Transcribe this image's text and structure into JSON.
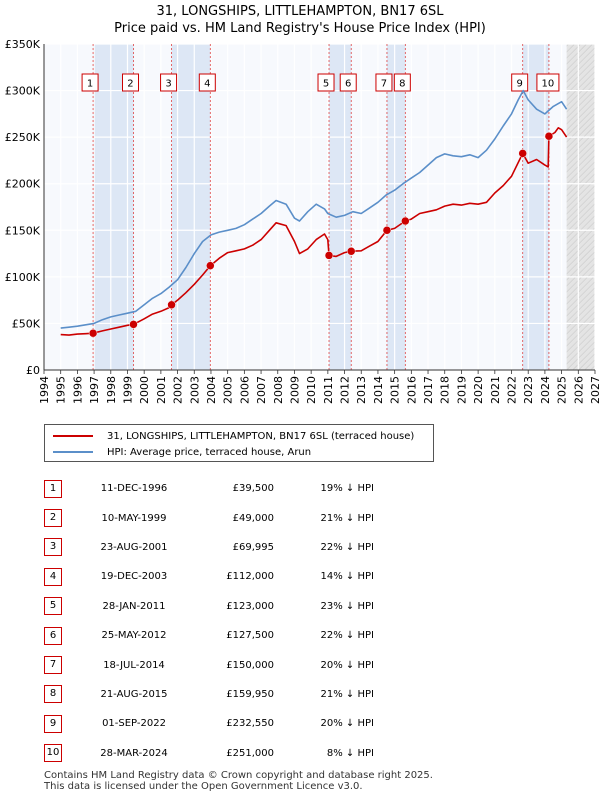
{
  "title_line1": "31, LONGSHIPS, LITTLEHAMPTON, BN17 6SL",
  "title_line2": "Price paid vs. HM Land Registry's House Price Index (HPI)",
  "chart_data": {
    "type": "line",
    "title": "31, LONGSHIPS, LITTLEHAMPTON, BN17 6SL — Price paid vs. HM Land Registry's House Price Index (HPI)",
    "xlim": [
      1994,
      2027
    ],
    "ylim": [
      0,
      350000
    ],
    "y_ticks": [
      0,
      50000,
      100000,
      150000,
      200000,
      250000,
      300000,
      350000
    ],
    "y_tick_labels": [
      "£0",
      "£50K",
      "£100K",
      "£150K",
      "£200K",
      "£250K",
      "£300K",
      "£350K"
    ],
    "x_ticks": [
      1994,
      1995,
      1996,
      1997,
      1998,
      1999,
      2000,
      2001,
      2002,
      2003,
      2004,
      2005,
      2006,
      2007,
      2008,
      2009,
      2010,
      2011,
      2012,
      2013,
      2014,
      2015,
      2016,
      2017,
      2018,
      2019,
      2020,
      2021,
      2022,
      2023,
      2024,
      2025,
      2026,
      2027
    ],
    "x_tick_labels": [
      "1994",
      "1995",
      "1996",
      "1997",
      "1998",
      "1999",
      "2000",
      "2001",
      "2002",
      "2003",
      "2004",
      "2005",
      "2006",
      "2007",
      "2008",
      "2009",
      "2010",
      "2011",
      "2012",
      "2013",
      "2014",
      "2015",
      "2016",
      "2017",
      "2018",
      "2019",
      "2020",
      "2021",
      "2022",
      "2023",
      "2024",
      "2025",
      "2026",
      "2027"
    ],
    "grid": true,
    "series": [
      {
        "name": "31, LONGSHIPS, LITTLEHAMPTON, BN17 6SL (terraced house)",
        "color": "#cc0000",
        "x": [
          1995.0,
          1995.5,
          1996.0,
          1996.5,
          1996.94,
          1997.5,
          1998.0,
          1998.5,
          1999.0,
          1999.36,
          2000.0,
          2000.5,
          2001.0,
          2001.5,
          2001.64,
          2002.0,
          2002.5,
          2003.0,
          2003.5,
          2003.96,
          2004.5,
          2005.0,
          2005.5,
          2006.0,
          2006.5,
          2007.0,
          2007.5,
          2007.9,
          2008.5,
          2009.0,
          2009.3,
          2009.8,
          2010.3,
          2010.8,
          2011.0,
          2011.07,
          2011.5,
          2012.0,
          2012.4,
          2013.0,
          2013.5,
          2014.0,
          2014.54,
          2015.0,
          2015.64,
          2016.0,
          2016.5,
          2017.0,
          2017.5,
          2018.0,
          2018.5,
          2019.0,
          2019.5,
          2020.0,
          2020.5,
          2021.0,
          2021.5,
          2022.0,
          2022.67,
          2023.0,
          2023.5,
          2024.0,
          2024.2,
          2024.24,
          2024.6,
          2024.8,
          2025.0,
          2025.3
        ],
        "values": [
          38000,
          37500,
          38500,
          39000,
          39500,
          42000,
          44000,
          46000,
          48000,
          49000,
          55000,
          60000,
          63000,
          67000,
          69995,
          75000,
          83000,
          92000,
          102000,
          112000,
          120000,
          126000,
          128000,
          130000,
          134000,
          140000,
          150000,
          158000,
          155000,
          138000,
          125000,
          130000,
          140000,
          146000,
          140000,
          123000,
          122000,
          126000,
          127500,
          128000,
          133000,
          138000,
          150000,
          152000,
          159950,
          162000,
          168000,
          170000,
          172000,
          176000,
          178000,
          177000,
          179000,
          178000,
          180000,
          190000,
          198000,
          208000,
          232550,
          222000,
          226000,
          220000,
          218000,
          251000,
          255000,
          260000,
          258000,
          250000
        ]
      },
      {
        "name": "HPI: Average price, terraced house, Arun",
        "color": "#5b8fc9",
        "x": [
          1995.0,
          1995.5,
          1996.0,
          1996.5,
          1997.0,
          1997.5,
          1998.0,
          1998.5,
          1999.0,
          1999.5,
          2000.0,
          2000.5,
          2001.0,
          2001.5,
          2002.0,
          2002.5,
          2003.0,
          2003.5,
          2004.0,
          2004.5,
          2005.0,
          2005.5,
          2006.0,
          2006.5,
          2007.0,
          2007.5,
          2007.9,
          2008.5,
          2009.0,
          2009.3,
          2009.8,
          2010.3,
          2010.8,
          2011.0,
          2011.5,
          2012.0,
          2012.5,
          2013.0,
          2013.5,
          2014.0,
          2014.5,
          2015.0,
          2015.5,
          2016.0,
          2016.5,
          2017.0,
          2017.5,
          2018.0,
          2018.5,
          2019.0,
          2019.5,
          2020.0,
          2020.5,
          2021.0,
          2021.5,
          2022.0,
          2022.4,
          2022.7,
          2023.0,
          2023.5,
          2024.0,
          2024.5,
          2025.0,
          2025.3
        ],
        "values": [
          45000,
          46000,
          47000,
          48500,
          50000,
          54000,
          57000,
          59000,
          61000,
          63000,
          70000,
          77000,
          82000,
          89000,
          97000,
          110000,
          125000,
          138000,
          145000,
          148000,
          150000,
          152000,
          156000,
          162000,
          168000,
          176000,
          182000,
          178000,
          163000,
          160000,
          170000,
          178000,
          173000,
          168000,
          164000,
          166000,
          170000,
          168000,
          174000,
          180000,
          188000,
          193000,
          200000,
          206000,
          212000,
          220000,
          228000,
          232000,
          230000,
          229000,
          231000,
          228000,
          236000,
          248000,
          262000,
          275000,
          290000,
          300000,
          290000,
          280000,
          275000,
          283000,
          288000,
          280000
        ]
      }
    ],
    "sales": [
      {
        "index": "1",
        "x": 1996.94,
        "date": "11-DEC-1996",
        "price": 39500,
        "price_label": "£39,500",
        "hpi": "19% ↓ HPI"
      },
      {
        "index": "2",
        "x": 1999.36,
        "date": "10-MAY-1999",
        "price": 49000,
        "price_label": "£49,000",
        "hpi": "21% ↓ HPI"
      },
      {
        "index": "3",
        "x": 2001.64,
        "date": "23-AUG-2001",
        "price": 69995,
        "price_label": "£69,995",
        "hpi": "22% ↓ HPI"
      },
      {
        "index": "4",
        "x": 2003.96,
        "date": "19-DEC-2003",
        "price": 112000,
        "price_label": "£112,000",
        "hpi": "14% ↓ HPI"
      },
      {
        "index": "5",
        "x": 2011.07,
        "date": "28-JAN-2011",
        "price": 123000,
        "price_label": "£123,000",
        "hpi": "23% ↓ HPI"
      },
      {
        "index": "6",
        "x": 2012.4,
        "date": "25-MAY-2012",
        "price": 127500,
        "price_label": "£127,500",
        "hpi": "22% ↓ HPI"
      },
      {
        "index": "7",
        "x": 2014.54,
        "date": "18-JUL-2014",
        "price": 150000,
        "price_label": "£150,000",
        "hpi": "20% ↓ HPI"
      },
      {
        "index": "8",
        "x": 2015.64,
        "date": "21-AUG-2015",
        "price": 159950,
        "price_label": "£159,950",
        "hpi": "21% ↓ HPI"
      },
      {
        "index": "9",
        "x": 2022.67,
        "date": "01-SEP-2022",
        "price": 232550,
        "price_label": "£232,550",
        "hpi": "20% ↓ HPI"
      },
      {
        "index": "10",
        "x": 2024.24,
        "date": "28-MAR-2024",
        "price": 251000,
        "price_label": "£251,000",
        "hpi": "8% ↓ HPI"
      }
    ],
    "shaded_spans": [
      [
        1996.94,
        1999.36
      ],
      [
        2001.64,
        2003.96
      ],
      [
        2011.07,
        2012.4
      ],
      [
        2014.54,
        2015.64
      ],
      [
        2022.67,
        2024.24
      ]
    ],
    "future_from": 2025.3
  },
  "legend": {
    "series1": "31, LONGSHIPS, LITTLEHAMPTON, BN17 6SL (terraced house)",
    "series2": "HPI: Average price, terraced house, Arun",
    "color1": "#cc0000",
    "color2": "#5b8fc9"
  },
  "footer_line1": "Contains HM Land Registry data © Crown copyright and database right 2025.",
  "footer_line2": "This data is licensed under the Open Government Licence v3.0."
}
